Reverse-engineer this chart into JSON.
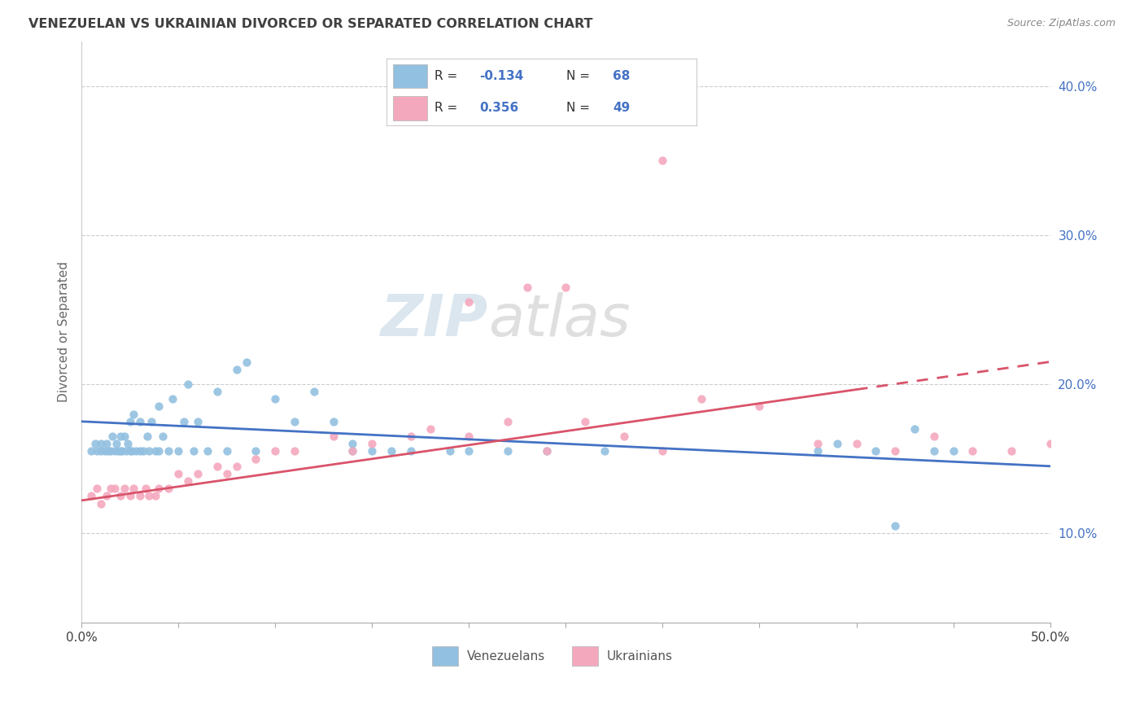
{
  "title": "VENEZUELAN VS UKRAINIAN DIVORCED OR SEPARATED CORRELATION CHART",
  "source": "Source: ZipAtlas.com",
  "ylabel": "Divorced or Separated",
  "xlim": [
    0.0,
    0.5
  ],
  "ylim": [
    0.04,
    0.43
  ],
  "xtick_positions": [
    0.0,
    0.05,
    0.1,
    0.15,
    0.2,
    0.25,
    0.3,
    0.35,
    0.4,
    0.45,
    0.5
  ],
  "ytick_positions": [
    0.1,
    0.2,
    0.3,
    0.4
  ],
  "blue_color": "#92c0e0",
  "pink_color": "#f4a8be",
  "blue_line_color": "#4472c4",
  "pink_line_color": "#d9546a",
  "axis_label_color": "#4472c4",
  "title_color": "#404040",
  "source_color": "#888888",
  "watermark_zip_color": "#c8d8e8",
  "watermark_atlas_color": "#c8c8c8",
  "blue_x": [
    0.005,
    0.007,
    0.008,
    0.01,
    0.01,
    0.012,
    0.013,
    0.014,
    0.015,
    0.016,
    0.017,
    0.018,
    0.019,
    0.02,
    0.02,
    0.021,
    0.022,
    0.023,
    0.024,
    0.025,
    0.025,
    0.026,
    0.027,
    0.028,
    0.03,
    0.03,
    0.032,
    0.034,
    0.035,
    0.036,
    0.038,
    0.04,
    0.04,
    0.042,
    0.045,
    0.047,
    0.05,
    0.053,
    0.055,
    0.058,
    0.06,
    0.065,
    0.07,
    0.075,
    0.08,
    0.085,
    0.09,
    0.1,
    0.11,
    0.12,
    0.13,
    0.14,
    0.14,
    0.15,
    0.16,
    0.17,
    0.19,
    0.2,
    0.22,
    0.24,
    0.27,
    0.38,
    0.39,
    0.41,
    0.42,
    0.43,
    0.44,
    0.45
  ],
  "blue_y": [
    0.155,
    0.16,
    0.155,
    0.155,
    0.16,
    0.155,
    0.16,
    0.155,
    0.155,
    0.165,
    0.155,
    0.16,
    0.155,
    0.155,
    0.165,
    0.155,
    0.165,
    0.155,
    0.16,
    0.155,
    0.175,
    0.155,
    0.18,
    0.155,
    0.155,
    0.175,
    0.155,
    0.165,
    0.155,
    0.175,
    0.155,
    0.155,
    0.185,
    0.165,
    0.155,
    0.19,
    0.155,
    0.175,
    0.2,
    0.155,
    0.175,
    0.155,
    0.195,
    0.155,
    0.21,
    0.215,
    0.155,
    0.19,
    0.175,
    0.195,
    0.175,
    0.155,
    0.16,
    0.155,
    0.155,
    0.155,
    0.155,
    0.155,
    0.155,
    0.155,
    0.155,
    0.155,
    0.16,
    0.155,
    0.105,
    0.17,
    0.155,
    0.155
  ],
  "pink_x": [
    0.005,
    0.008,
    0.01,
    0.013,
    0.015,
    0.017,
    0.02,
    0.022,
    0.025,
    0.027,
    0.03,
    0.033,
    0.035,
    0.038,
    0.04,
    0.045,
    0.05,
    0.055,
    0.06,
    0.07,
    0.075,
    0.08,
    0.09,
    0.1,
    0.11,
    0.13,
    0.14,
    0.15,
    0.17,
    0.18,
    0.2,
    0.22,
    0.24,
    0.26,
    0.28,
    0.3,
    0.32,
    0.35,
    0.38,
    0.4,
    0.42,
    0.44,
    0.46,
    0.48,
    0.5,
    0.2,
    0.23,
    0.25,
    0.3
  ],
  "pink_y": [
    0.125,
    0.13,
    0.12,
    0.125,
    0.13,
    0.13,
    0.125,
    0.13,
    0.125,
    0.13,
    0.125,
    0.13,
    0.125,
    0.125,
    0.13,
    0.13,
    0.14,
    0.135,
    0.14,
    0.145,
    0.14,
    0.145,
    0.15,
    0.155,
    0.155,
    0.165,
    0.155,
    0.16,
    0.165,
    0.17,
    0.165,
    0.175,
    0.155,
    0.175,
    0.165,
    0.155,
    0.19,
    0.185,
    0.16,
    0.16,
    0.155,
    0.165,
    0.155,
    0.155,
    0.16,
    0.255,
    0.265,
    0.265,
    0.35
  ]
}
